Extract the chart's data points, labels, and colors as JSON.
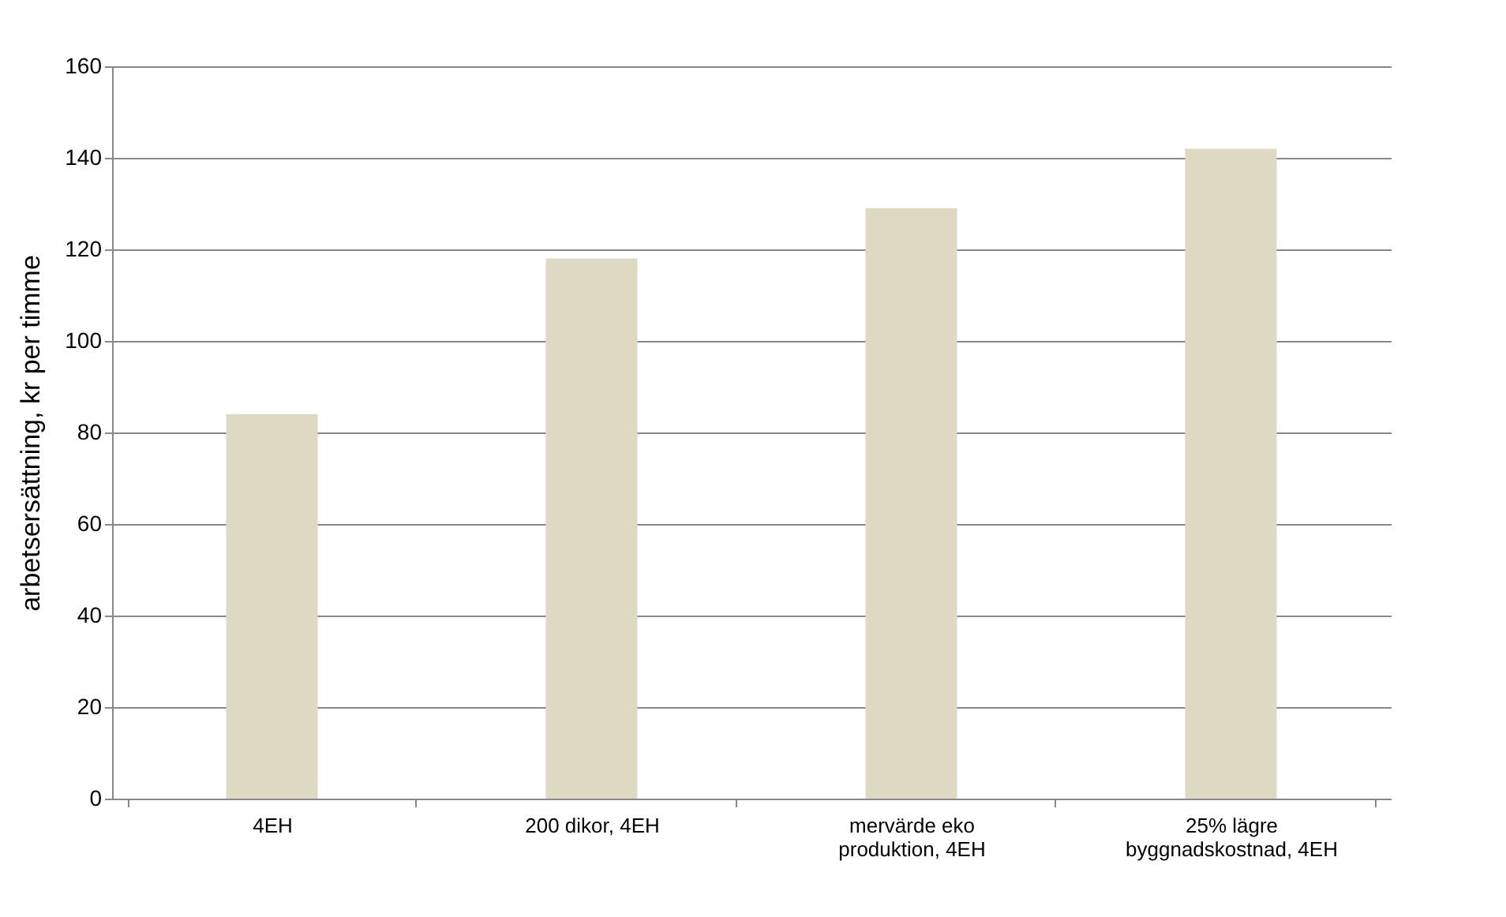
{
  "chart_data": {
    "type": "bar",
    "ylabel": "arbetsersättning, kr per timme",
    "categories": [
      "4EH",
      "200 dikor, 4EH",
      "mervärde eko\nproduktion, 4EH",
      "25% lägre\nbyggnadskostnad, 4EH"
    ],
    "values": [
      84,
      118,
      129,
      142
    ],
    "color": "#ddd9c3",
    "ylim": [
      0,
      160
    ],
    "yticks": [
      0,
      20,
      40,
      60,
      80,
      100,
      120,
      140,
      160
    ],
    "grid": "y"
  }
}
